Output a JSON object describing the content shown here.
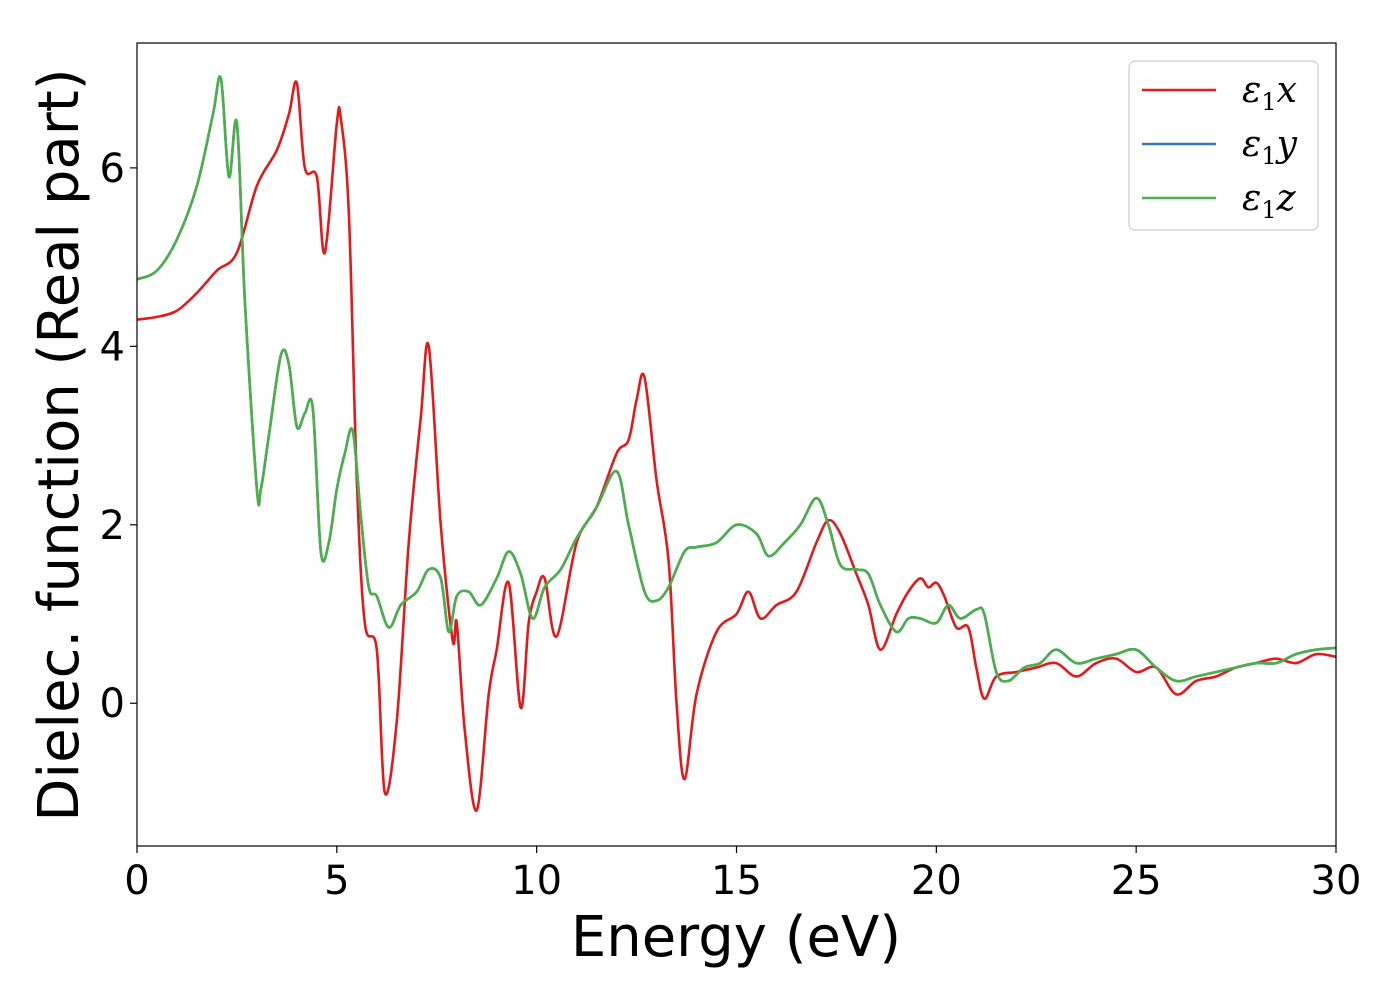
{
  "chart_data": {
    "type": "line",
    "xlabel": "Energy (eV)",
    "ylabel": "Dielec. function (Real part)",
    "xlim": [
      0,
      30
    ],
    "ylim": [
      -1.6,
      7.4
    ],
    "xticks": [
      0,
      5,
      10,
      15,
      20,
      25,
      30
    ],
    "xtick_labels": [
      "0",
      "5",
      "10",
      "15",
      "20",
      "25",
      "30"
    ],
    "yticks": [
      0,
      2,
      4,
      6
    ],
    "ytick_labels": [
      "0",
      "2",
      "4",
      "6"
    ],
    "grid": false,
    "legend": "top-right",
    "series": [
      {
        "name": "ε1x",
        "legend_base": "ε",
        "legend_sub": "1",
        "legend_suffix": "x",
        "color": "#e31a1c",
        "x": [
          0,
          0.5,
          1,
          1.5,
          2,
          2.5,
          3,
          3.5,
          3.8,
          4.0,
          4.2,
          4.5,
          4.7,
          5.0,
          5.1,
          5.3,
          5.5,
          5.7,
          6.0,
          6.2,
          6.5,
          6.8,
          7.1,
          7.3,
          7.6,
          7.9,
          8.0,
          8.2,
          8.5,
          8.8,
          9.0,
          9.3,
          9.6,
          9.8,
          10.0,
          10.2,
          10.5,
          11.0,
          11.5,
          12.0,
          12.3,
          12.5,
          12.7,
          13.0,
          13.3,
          13.5,
          13.7,
          14.0,
          14.5,
          15.0,
          15.3,
          15.6,
          16.0,
          16.5,
          17.0,
          17.3,
          17.6,
          18.0,
          18.3,
          18.6,
          19.0,
          19.3,
          19.6,
          19.8,
          20.0,
          20.2,
          20.5,
          20.8,
          21.0,
          21.2,
          21.5,
          22.0,
          22.5,
          23.0,
          23.5,
          24.0,
          24.5,
          25.0,
          25.5,
          26.0,
          26.5,
          27.0,
          27.5,
          28.0,
          28.5,
          29.0,
          29.5,
          30.0
        ],
        "y": [
          4.3,
          4.33,
          4.4,
          4.6,
          4.85,
          5.05,
          5.8,
          6.2,
          6.6,
          6.95,
          6.0,
          5.9,
          5.05,
          6.5,
          6.55,
          5.5,
          2.5,
          0.9,
          0.6,
          -1.0,
          -0.2,
          1.8,
          3.2,
          4.0,
          2.0,
          0.7,
          0.9,
          -0.3,
          -1.2,
          0.1,
          0.6,
          1.35,
          -0.05,
          0.9,
          1.25,
          1.4,
          0.75,
          1.8,
          2.2,
          2.8,
          2.95,
          3.4,
          3.65,
          2.5,
          1.6,
          0.0,
          -0.85,
          0.1,
          0.8,
          1.0,
          1.25,
          0.95,
          1.1,
          1.25,
          1.8,
          2.05,
          1.9,
          1.45,
          1.1,
          0.6,
          1.0,
          1.25,
          1.4,
          1.3,
          1.35,
          1.2,
          0.85,
          0.85,
          0.4,
          0.05,
          0.3,
          0.35,
          0.4,
          0.45,
          0.3,
          0.45,
          0.5,
          0.35,
          0.4,
          0.1,
          0.25,
          0.3,
          0.4,
          0.45,
          0.5,
          0.45,
          0.55,
          0.52
        ]
      },
      {
        "name": "ε1y",
        "legend_base": "ε",
        "legend_sub": "1",
        "legend_suffix": "y",
        "color": "#377eb8",
        "x": [
          0,
          0.5,
          1,
          1.5,
          1.9,
          2.1,
          2.3,
          2.5,
          2.7,
          3.0,
          3.1,
          3.3,
          3.6,
          3.8,
          4.0,
          4.2,
          4.4,
          4.6,
          4.8,
          5.0,
          5.2,
          5.4,
          5.6,
          5.8,
          6.0,
          6.3,
          6.6,
          7.0,
          7.3,
          7.6,
          7.8,
          8.0,
          8.3,
          8.6,
          9.0,
          9.3,
          9.6,
          9.9,
          10.2,
          10.6,
          11.0,
          11.5,
          12.0,
          12.3,
          12.7,
          13.0,
          13.3,
          13.7,
          14.0,
          14.5,
          15.0,
          15.5,
          15.8,
          16.2,
          16.6,
          17.0,
          17.3,
          17.6,
          18.0,
          18.3,
          18.6,
          19.0,
          19.3,
          19.6,
          20.0,
          20.3,
          20.6,
          21.0,
          21.2,
          21.5,
          21.8,
          22.2,
          22.6,
          23.0,
          23.5,
          24.0,
          24.5,
          25.0,
          25.5,
          26.0,
          26.5,
          27.0,
          27.5,
          28.0,
          28.5,
          29.0,
          29.5,
          30.0
        ],
        "y": [
          4.75,
          4.85,
          5.2,
          5.8,
          6.6,
          7.0,
          5.9,
          6.5,
          4.5,
          2.4,
          2.4,
          3.0,
          3.9,
          3.8,
          3.1,
          3.25,
          3.3,
          1.7,
          1.8,
          2.4,
          2.8,
          3.05,
          2.1,
          1.3,
          1.2,
          0.85,
          1.1,
          1.25,
          1.5,
          1.4,
          0.8,
          1.2,
          1.25,
          1.1,
          1.4,
          1.7,
          1.45,
          0.95,
          1.3,
          1.5,
          1.85,
          2.2,
          2.6,
          2.0,
          1.25,
          1.15,
          1.3,
          1.7,
          1.75,
          1.8,
          2.0,
          1.9,
          1.65,
          1.8,
          2.0,
          2.3,
          2.0,
          1.55,
          1.5,
          1.45,
          1.1,
          0.8,
          0.95,
          0.95,
          0.9,
          1.1,
          0.95,
          1.05,
          1.0,
          0.35,
          0.25,
          0.4,
          0.45,
          0.6,
          0.45,
          0.5,
          0.55,
          0.6,
          0.4,
          0.25,
          0.3,
          0.35,
          0.4,
          0.45,
          0.45,
          0.55,
          0.6,
          0.62
        ]
      },
      {
        "name": "ε1z",
        "legend_base": "ε",
        "legend_sub": "1",
        "legend_suffix": "z",
        "color": "#4daf4a",
        "x": [
          0,
          0.5,
          1,
          1.5,
          1.9,
          2.1,
          2.3,
          2.5,
          2.7,
          3.0,
          3.1,
          3.3,
          3.6,
          3.8,
          4.0,
          4.2,
          4.4,
          4.6,
          4.8,
          5.0,
          5.2,
          5.4,
          5.6,
          5.8,
          6.0,
          6.3,
          6.6,
          7.0,
          7.3,
          7.6,
          7.8,
          8.0,
          8.3,
          8.6,
          9.0,
          9.3,
          9.6,
          9.9,
          10.2,
          10.6,
          11.0,
          11.5,
          12.0,
          12.3,
          12.7,
          13.0,
          13.3,
          13.7,
          14.0,
          14.5,
          15.0,
          15.5,
          15.8,
          16.2,
          16.6,
          17.0,
          17.3,
          17.6,
          18.0,
          18.3,
          18.6,
          19.0,
          19.3,
          19.6,
          20.0,
          20.3,
          20.6,
          21.0,
          21.2,
          21.5,
          21.8,
          22.2,
          22.6,
          23.0,
          23.5,
          24.0,
          24.5,
          25.0,
          25.5,
          26.0,
          26.5,
          27.0,
          27.5,
          28.0,
          28.5,
          29.0,
          29.5,
          30.0
        ],
        "y": [
          4.75,
          4.85,
          5.2,
          5.8,
          6.6,
          7.0,
          5.9,
          6.5,
          4.5,
          2.4,
          2.4,
          3.0,
          3.9,
          3.8,
          3.1,
          3.25,
          3.3,
          1.7,
          1.8,
          2.4,
          2.8,
          3.05,
          2.1,
          1.3,
          1.2,
          0.85,
          1.1,
          1.25,
          1.5,
          1.4,
          0.8,
          1.2,
          1.25,
          1.1,
          1.4,
          1.7,
          1.45,
          0.95,
          1.3,
          1.5,
          1.85,
          2.2,
          2.6,
          2.0,
          1.25,
          1.15,
          1.3,
          1.7,
          1.75,
          1.8,
          2.0,
          1.9,
          1.65,
          1.8,
          2.0,
          2.3,
          2.0,
          1.55,
          1.5,
          1.45,
          1.1,
          0.8,
          0.95,
          0.95,
          0.9,
          1.1,
          0.95,
          1.05,
          1.0,
          0.35,
          0.25,
          0.4,
          0.45,
          0.6,
          0.45,
          0.5,
          0.55,
          0.6,
          0.4,
          0.25,
          0.3,
          0.35,
          0.4,
          0.45,
          0.45,
          0.55,
          0.6,
          0.62
        ]
      }
    ]
  }
}
